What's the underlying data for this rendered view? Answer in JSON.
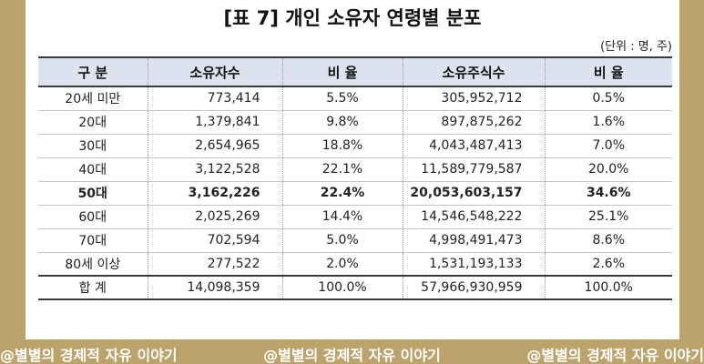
{
  "title": "[표 7] 개인 소유자 연령별 분포",
  "unit_note": "(단위 : 명, 주)",
  "table": {
    "headers": [
      "구  분",
      "소유자수",
      "비  율",
      "소유주식수",
      "비  율"
    ],
    "rows": [
      {
        "label": "20세 미만",
        "holders": "773,414",
        "holders_ratio": "5.5%",
        "shares": "305,952,712",
        "shares_ratio": "0.5%"
      },
      {
        "label": "20대",
        "holders": "1,379,841",
        "holders_ratio": "9.8%",
        "shares": "897,875,262",
        "shares_ratio": "1.6%"
      },
      {
        "label": "30대",
        "holders": "2,654,965",
        "holders_ratio": "18.8%",
        "shares": "4,043,487,413",
        "shares_ratio": "7.0%"
      },
      {
        "label": "40대",
        "holders": "3,122,528",
        "holders_ratio": "22.1%",
        "shares": "11,589,779,587",
        "shares_ratio": "20.0%"
      },
      {
        "label": "50대",
        "holders": "3,162,226",
        "holders_ratio": "22.4%",
        "shares": "20,053,603,157",
        "shares_ratio": "34.6%"
      },
      {
        "label": "60대",
        "holders": "2,025,269",
        "holders_ratio": "14.4%",
        "shares": "14,546,548,222",
        "shares_ratio": "25.1%"
      },
      {
        "label": "70대",
        "holders": "702,594",
        "holders_ratio": "5.0%",
        "shares": "4,998,491,473",
        "shares_ratio": "8.6%"
      },
      {
        "label": "80세 이상",
        "holders": "277,522",
        "holders_ratio": "2.0%",
        "shares": "1,531,193,133",
        "shares_ratio": "2.6%"
      }
    ],
    "total": {
      "label": "합  계",
      "holders": "14,098,359",
      "holders_ratio": "100.0%",
      "shares": "57,966,930,959",
      "shares_ratio": "100.0%"
    }
  },
  "watermark": [
    "@별별의 경제적 자유 이야기",
    "@별별의 경제적 자유 이야기",
    "@별별의 경제적 자유 이야기"
  ]
}
